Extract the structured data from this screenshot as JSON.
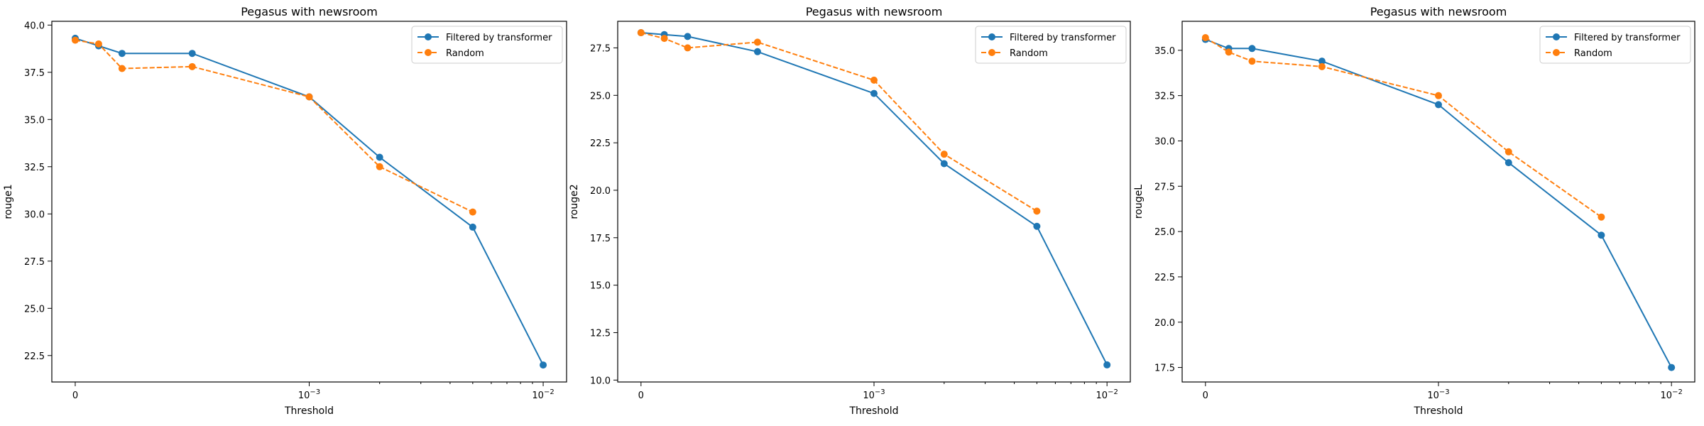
{
  "colors": {
    "series1": "#1f77b4",
    "series2": "#ff7f0e"
  },
  "x_tick_labels": [
    "0",
    "10",
    "10"
  ],
  "x_tick_exponents": [
    "",
    "−3",
    "−2"
  ],
  "chart_data": [
    {
      "type": "line",
      "title": "Pegasus with newsroom",
      "xlabel": "Threshold",
      "ylabel": "rouge1",
      "xscale": "symlog",
      "ylim": [
        21.1,
        40.2
      ],
      "yticks": [
        22.5,
        25.0,
        27.5,
        30.0,
        32.5,
        35.0,
        37.5,
        40.0
      ],
      "ytick_labels": [
        "22.5",
        "25.0",
        "27.5",
        "30.0",
        "32.5",
        "35.0",
        "37.5",
        "40.0"
      ],
      "legend": "top-right",
      "series": [
        {
          "name": "Filtered by transformer",
          "style": "solid",
          "x": [
            0,
            0.0001,
            0.0002,
            0.0005,
            0.001,
            0.002,
            0.005,
            0.01
          ],
          "y": [
            39.3,
            38.9,
            38.5,
            38.5,
            36.2,
            33.0,
            29.3,
            22.0
          ]
        },
        {
          "name": "Random",
          "style": "dashed",
          "x": [
            0,
            0.0001,
            0.0002,
            0.0005,
            0.001,
            0.002,
            0.005
          ],
          "y": [
            39.2,
            39.0,
            37.7,
            37.8,
            36.2,
            32.5,
            30.1
          ]
        }
      ]
    },
    {
      "type": "line",
      "title": "Pegasus with newsroom",
      "xlabel": "Threshold",
      "ylabel": "rouge2",
      "xscale": "symlog",
      "ylim": [
        9.9,
        28.9
      ],
      "yticks": [
        10.0,
        12.5,
        15.0,
        17.5,
        20.0,
        22.5,
        25.0,
        27.5
      ],
      "ytick_labels": [
        "10.0",
        "12.5",
        "15.0",
        "17.5",
        "20.0",
        "22.5",
        "25.0",
        "27.5"
      ],
      "legend": "top-right",
      "series": [
        {
          "name": "Filtered by transformer",
          "style": "solid",
          "x": [
            0,
            0.0001,
            0.0002,
            0.0005,
            0.001,
            0.002,
            0.005,
            0.01
          ],
          "y": [
            28.3,
            28.2,
            28.1,
            27.3,
            25.1,
            21.4,
            18.1,
            10.8
          ]
        },
        {
          "name": "Random",
          "style": "dashed",
          "x": [
            0,
            0.0001,
            0.0002,
            0.0005,
            0.001,
            0.002,
            0.005
          ],
          "y": [
            28.3,
            28.0,
            27.5,
            27.8,
            25.8,
            21.9,
            18.9
          ]
        }
      ]
    },
    {
      "type": "line",
      "title": "Pegasus with newsroom",
      "xlabel": "Threshold",
      "ylabel": "rougeL",
      "xscale": "symlog",
      "ylim": [
        16.7,
        36.6
      ],
      "yticks": [
        17.5,
        20.0,
        22.5,
        25.0,
        27.5,
        30.0,
        32.5,
        35.0
      ],
      "ytick_labels": [
        "17.5",
        "20.0",
        "22.5",
        "25.0",
        "27.5",
        "30.0",
        "32.5",
        "35.0"
      ],
      "legend": "top-right",
      "series": [
        {
          "name": "Filtered by transformer",
          "style": "solid",
          "x": [
            0,
            0.0001,
            0.0002,
            0.0005,
            0.001,
            0.002,
            0.005,
            0.01
          ],
          "y": [
            35.6,
            35.1,
            35.1,
            34.4,
            32.0,
            28.8,
            24.8,
            17.5
          ]
        },
        {
          "name": "Random",
          "style": "dashed",
          "x": [
            0,
            0.0001,
            0.0002,
            0.0005,
            0.001,
            0.002,
            0.005
          ],
          "y": [
            35.7,
            34.9,
            34.4,
            34.1,
            32.5,
            29.4,
            25.8
          ]
        }
      ]
    }
  ]
}
